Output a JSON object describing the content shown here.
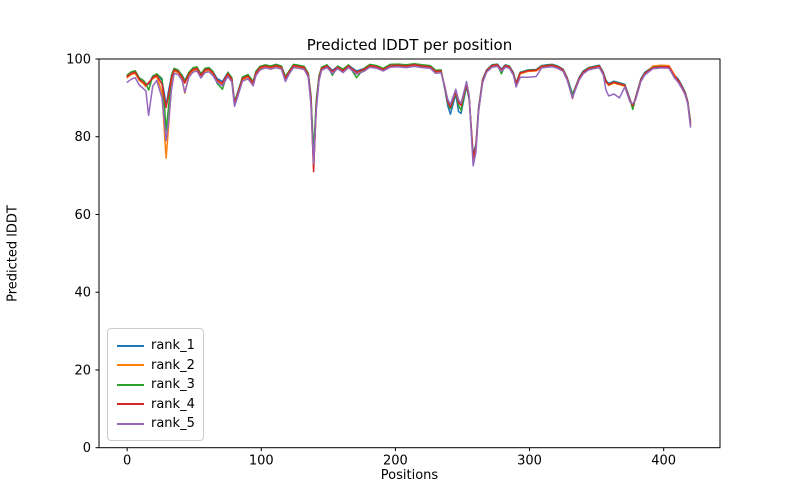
{
  "chart_data": {
    "type": "line",
    "title": "Predicted lDDT per position",
    "xlabel": "Positions",
    "ylabel": "Predicted lDDT",
    "xlim": [
      -21,
      442
    ],
    "ylim": [
      0,
      100
    ],
    "xticks": [
      0,
      100,
      200,
      300,
      400
    ],
    "yticks": [
      0,
      20,
      40,
      60,
      80,
      100
    ],
    "grid": false,
    "legend_position": "lower left",
    "x": [
      0,
      3,
      6,
      9,
      12,
      14,
      16,
      19,
      22,
      26,
      28,
      29,
      31,
      33,
      35,
      38,
      41,
      43,
      46,
      49,
      52,
      55,
      58,
      61,
      64,
      67,
      71,
      75,
      78,
      80,
      82,
      86,
      90,
      94,
      96,
      99,
      103,
      107,
      111,
      115,
      118,
      121,
      124,
      128,
      132,
      135,
      137,
      139,
      141,
      143,
      145,
      149,
      153,
      157,
      161,
      165,
      171,
      177,
      181,
      186,
      191,
      196,
      202,
      208,
      214,
      220,
      226,
      230,
      234,
      237,
      239,
      241,
      245,
      247,
      249,
      253,
      255,
      257,
      258,
      260,
      262,
      265,
      268,
      272,
      276,
      279,
      282,
      285,
      288,
      290,
      293,
      299,
      305,
      309,
      313,
      317,
      321,
      325,
      328,
      332,
      334,
      337,
      340,
      344,
      348,
      352,
      355,
      357,
      359,
      363,
      367,
      371,
      373,
      375,
      377,
      379,
      381,
      383,
      386,
      392,
      398,
      404,
      408,
      411,
      414,
      416,
      418,
      420
    ],
    "series": [
      {
        "name": "rank_1",
        "color": "#1f77b4",
        "values": [
          95.8,
          96.6,
          96.9,
          95.1,
          94.4,
          93.6,
          93.5,
          95.6,
          96.1,
          94.5,
          90.5,
          88.0,
          92.0,
          95.5,
          97.5,
          97.0,
          95.8,
          94.5,
          96.5,
          97.5,
          97.8,
          96.2,
          97.4,
          97.6,
          96.7,
          95.0,
          94.2,
          96.5,
          95.2,
          89.0,
          91.0,
          95.3,
          95.9,
          94.2,
          96.7,
          98.0,
          98.4,
          98.1,
          98.5,
          98.1,
          95.4,
          97.0,
          98.5,
          98.3,
          98.0,
          96.4,
          90.5,
          74.0,
          89.0,
          95.4,
          97.8,
          98.4,
          97.1,
          98.1,
          97.3,
          98.4,
          96.9,
          97.6,
          98.5,
          98.2,
          97.5,
          98.5,
          98.6,
          98.4,
          98.7,
          98.4,
          98.2,
          97.0,
          97.1,
          92.0,
          88.0,
          85.8,
          91.0,
          86.5,
          86.0,
          93.0,
          89.5,
          79.5,
          75.5,
          78.0,
          87.5,
          94.8,
          97.2,
          98.5,
          98.7,
          97.4,
          98.5,
          98.2,
          96.5,
          93.9,
          96.6,
          97.2,
          97.3,
          98.3,
          98.5,
          98.6,
          98.2,
          97.4,
          95.3,
          91.0,
          92.6,
          95.3,
          96.9,
          97.8,
          98.1,
          98.4,
          96.6,
          94.5,
          93.7,
          94.3,
          93.9,
          93.5,
          91.5,
          89.6,
          87.5,
          90.1,
          92.5,
          94.9,
          96.6,
          98.0,
          98.2,
          98.2,
          95.9,
          94.8,
          92.9,
          91.5,
          89.1,
          83.5
        ]
      },
      {
        "name": "rank_2",
        "color": "#ff7f0e",
        "values": [
          95.2,
          96.0,
          96.3,
          94.5,
          93.7,
          92.9,
          94.0,
          94.9,
          95.5,
          91.5,
          80.0,
          74.5,
          83.0,
          93.0,
          96.9,
          96.5,
          94.8,
          91.2,
          95.8,
          97.0,
          97.3,
          95.5,
          96.9,
          97.1,
          96.1,
          94.3,
          93.5,
          95.9,
          94.5,
          88.2,
          90.2,
          94.7,
          95.3,
          93.5,
          96.1,
          97.5,
          98.0,
          97.7,
          98.1,
          97.7,
          94.7,
          96.5,
          98.1,
          97.9,
          97.6,
          95.7,
          89.0,
          72.0,
          87.5,
          94.7,
          97.4,
          98.0,
          96.6,
          97.7,
          96.8,
          98.0,
          96.4,
          97.2,
          98.1,
          97.8,
          97.1,
          98.1,
          98.2,
          98.0,
          98.3,
          98.0,
          97.8,
          96.6,
          96.7,
          92.8,
          89.3,
          88.0,
          91.9,
          89.1,
          88.3,
          93.9,
          90.3,
          79.0,
          74.0,
          77.0,
          86.7,
          94.2,
          96.8,
          98.1,
          98.3,
          97.0,
          98.1,
          97.8,
          96.0,
          93.4,
          96.2,
          96.8,
          96.9,
          97.9,
          98.1,
          98.2,
          97.8,
          97.0,
          94.8,
          90.4,
          92.1,
          94.8,
          96.4,
          97.4,
          97.7,
          98.0,
          96.1,
          94.0,
          93.2,
          93.8,
          93.4,
          93.0,
          91.0,
          89.1,
          88.3,
          89.6,
          92.0,
          94.4,
          96.1,
          98.2,
          98.4,
          98.3,
          96.0,
          94.3,
          92.4,
          91.0,
          88.6,
          83.0
        ]
      },
      {
        "name": "rank_3",
        "color": "#2ca02c",
        "values": [
          95.9,
          96.7,
          97.0,
          95.2,
          94.5,
          93.7,
          92.0,
          95.5,
          96.2,
          95.0,
          87.0,
          81.5,
          88.0,
          95.8,
          97.6,
          97.2,
          95.7,
          94.2,
          96.6,
          97.7,
          98.0,
          96.2,
          97.6,
          97.8,
          96.8,
          93.8,
          92.2,
          96.6,
          95.2,
          88.8,
          90.8,
          95.4,
          96.0,
          94.2,
          96.8,
          98.1,
          98.5,
          98.2,
          98.6,
          98.2,
          95.5,
          97.1,
          98.6,
          98.4,
          98.1,
          96.3,
          90.8,
          76.0,
          89.5,
          95.7,
          97.9,
          98.5,
          95.8,
          98.2,
          97.4,
          98.5,
          95.2,
          97.7,
          98.6,
          98.3,
          97.6,
          98.6,
          98.7,
          98.5,
          98.8,
          98.5,
          98.3,
          97.1,
          97.2,
          92.2,
          88.7,
          87.2,
          91.3,
          88.0,
          86.8,
          93.3,
          89.7,
          79.7,
          75.0,
          77.2,
          87.2,
          94.6,
          97.1,
          98.4,
          98.6,
          96.2,
          98.4,
          98.1,
          96.3,
          93.7,
          96.5,
          97.1,
          97.2,
          98.2,
          98.4,
          98.5,
          98.1,
          97.3,
          95.1,
          90.8,
          92.4,
          95.1,
          96.7,
          97.7,
          98.0,
          98.3,
          96.4,
          94.3,
          93.5,
          94.1,
          93.7,
          93.3,
          91.3,
          89.4,
          87.0,
          89.9,
          92.3,
          94.7,
          96.4,
          97.9,
          98.1,
          97.9,
          95.4,
          94.6,
          92.7,
          91.3,
          88.9,
          84.0
        ]
      },
      {
        "name": "rank_4",
        "color": "#d62728",
        "values": [
          95.5,
          96.3,
          96.6,
          94.8,
          94.0,
          93.2,
          93.8,
          95.2,
          95.8,
          93.5,
          89.5,
          87.5,
          91.0,
          95.0,
          97.2,
          96.8,
          95.3,
          93.8,
          96.2,
          97.3,
          97.6,
          95.8,
          97.2,
          97.4,
          96.4,
          94.6,
          93.8,
          96.2,
          94.8,
          88.5,
          90.5,
          95.0,
          95.6,
          93.8,
          96.4,
          97.8,
          98.2,
          97.9,
          98.3,
          97.9,
          95.0,
          96.8,
          98.3,
          98.1,
          97.8,
          96.0,
          90.0,
          71.0,
          88.0,
          95.0,
          97.6,
          98.2,
          96.8,
          97.9,
          97.0,
          98.2,
          96.6,
          97.4,
          98.3,
          98.0,
          97.3,
          98.3,
          98.4,
          98.2,
          98.5,
          98.2,
          98.0,
          96.8,
          96.9,
          92.5,
          89.0,
          87.6,
          91.6,
          88.8,
          88.0,
          93.6,
          90.0,
          80.0,
          74.5,
          77.5,
          87.0,
          94.5,
          97.0,
          98.3,
          98.5,
          97.2,
          98.3,
          98.0,
          96.2,
          93.6,
          96.4,
          97.0,
          97.1,
          98.1,
          98.3,
          98.4,
          98.0,
          97.2,
          95.0,
          89.8,
          92.3,
          95.0,
          96.6,
          97.6,
          97.9,
          98.2,
          96.3,
          94.2,
          93.4,
          94.0,
          93.6,
          93.2,
          91.2,
          89.3,
          88.0,
          89.8,
          92.2,
          94.6,
          96.3,
          97.8,
          98.0,
          98.0,
          95.6,
          94.5,
          92.6,
          91.2,
          88.8,
          83.2
        ]
      },
      {
        "name": "rank_5",
        "color": "#9467bd",
        "values": [
          94.0,
          94.8,
          95.2,
          93.3,
          92.4,
          91.8,
          85.5,
          93.0,
          94.5,
          90.0,
          83.0,
          79.0,
          84.0,
          92.0,
          96.3,
          96.0,
          94.4,
          91.4,
          95.3,
          96.6,
          96.9,
          95.1,
          96.5,
          96.7,
          95.7,
          94.0,
          93.1,
          95.5,
          94.1,
          87.8,
          89.8,
          94.3,
          94.9,
          93.1,
          95.7,
          97.2,
          97.7,
          97.4,
          97.8,
          97.4,
          94.2,
          96.3,
          97.8,
          97.6,
          97.3,
          95.4,
          88.5,
          73.0,
          87.0,
          94.4,
          97.1,
          97.8,
          96.3,
          97.5,
          96.5,
          97.8,
          96.1,
          96.9,
          97.9,
          97.6,
          96.9,
          97.9,
          98.0,
          97.8,
          98.1,
          97.8,
          97.6,
          96.3,
          96.5,
          92.7,
          89.6,
          88.3,
          92.2,
          89.5,
          88.6,
          94.2,
          90.6,
          78.0,
          72.5,
          76.0,
          86.5,
          93.9,
          96.6,
          97.9,
          98.1,
          96.8,
          97.9,
          97.6,
          95.8,
          92.8,
          95.3,
          95.3,
          95.5,
          97.7,
          97.9,
          98.0,
          97.6,
          96.8,
          94.6,
          90.0,
          91.9,
          94.6,
          96.2,
          97.2,
          97.5,
          97.8,
          95.9,
          92.0,
          90.5,
          91.0,
          90.0,
          92.8,
          90.8,
          88.9,
          88.5,
          89.4,
          91.8,
          94.2,
          95.9,
          97.5,
          97.7,
          97.6,
          95.2,
          93.9,
          92.2,
          90.8,
          88.4,
          82.5
        ]
      }
    ]
  },
  "colors": {
    "axes": "#000000",
    "background": "#ffffff",
    "legend_border": "#cccccc"
  }
}
